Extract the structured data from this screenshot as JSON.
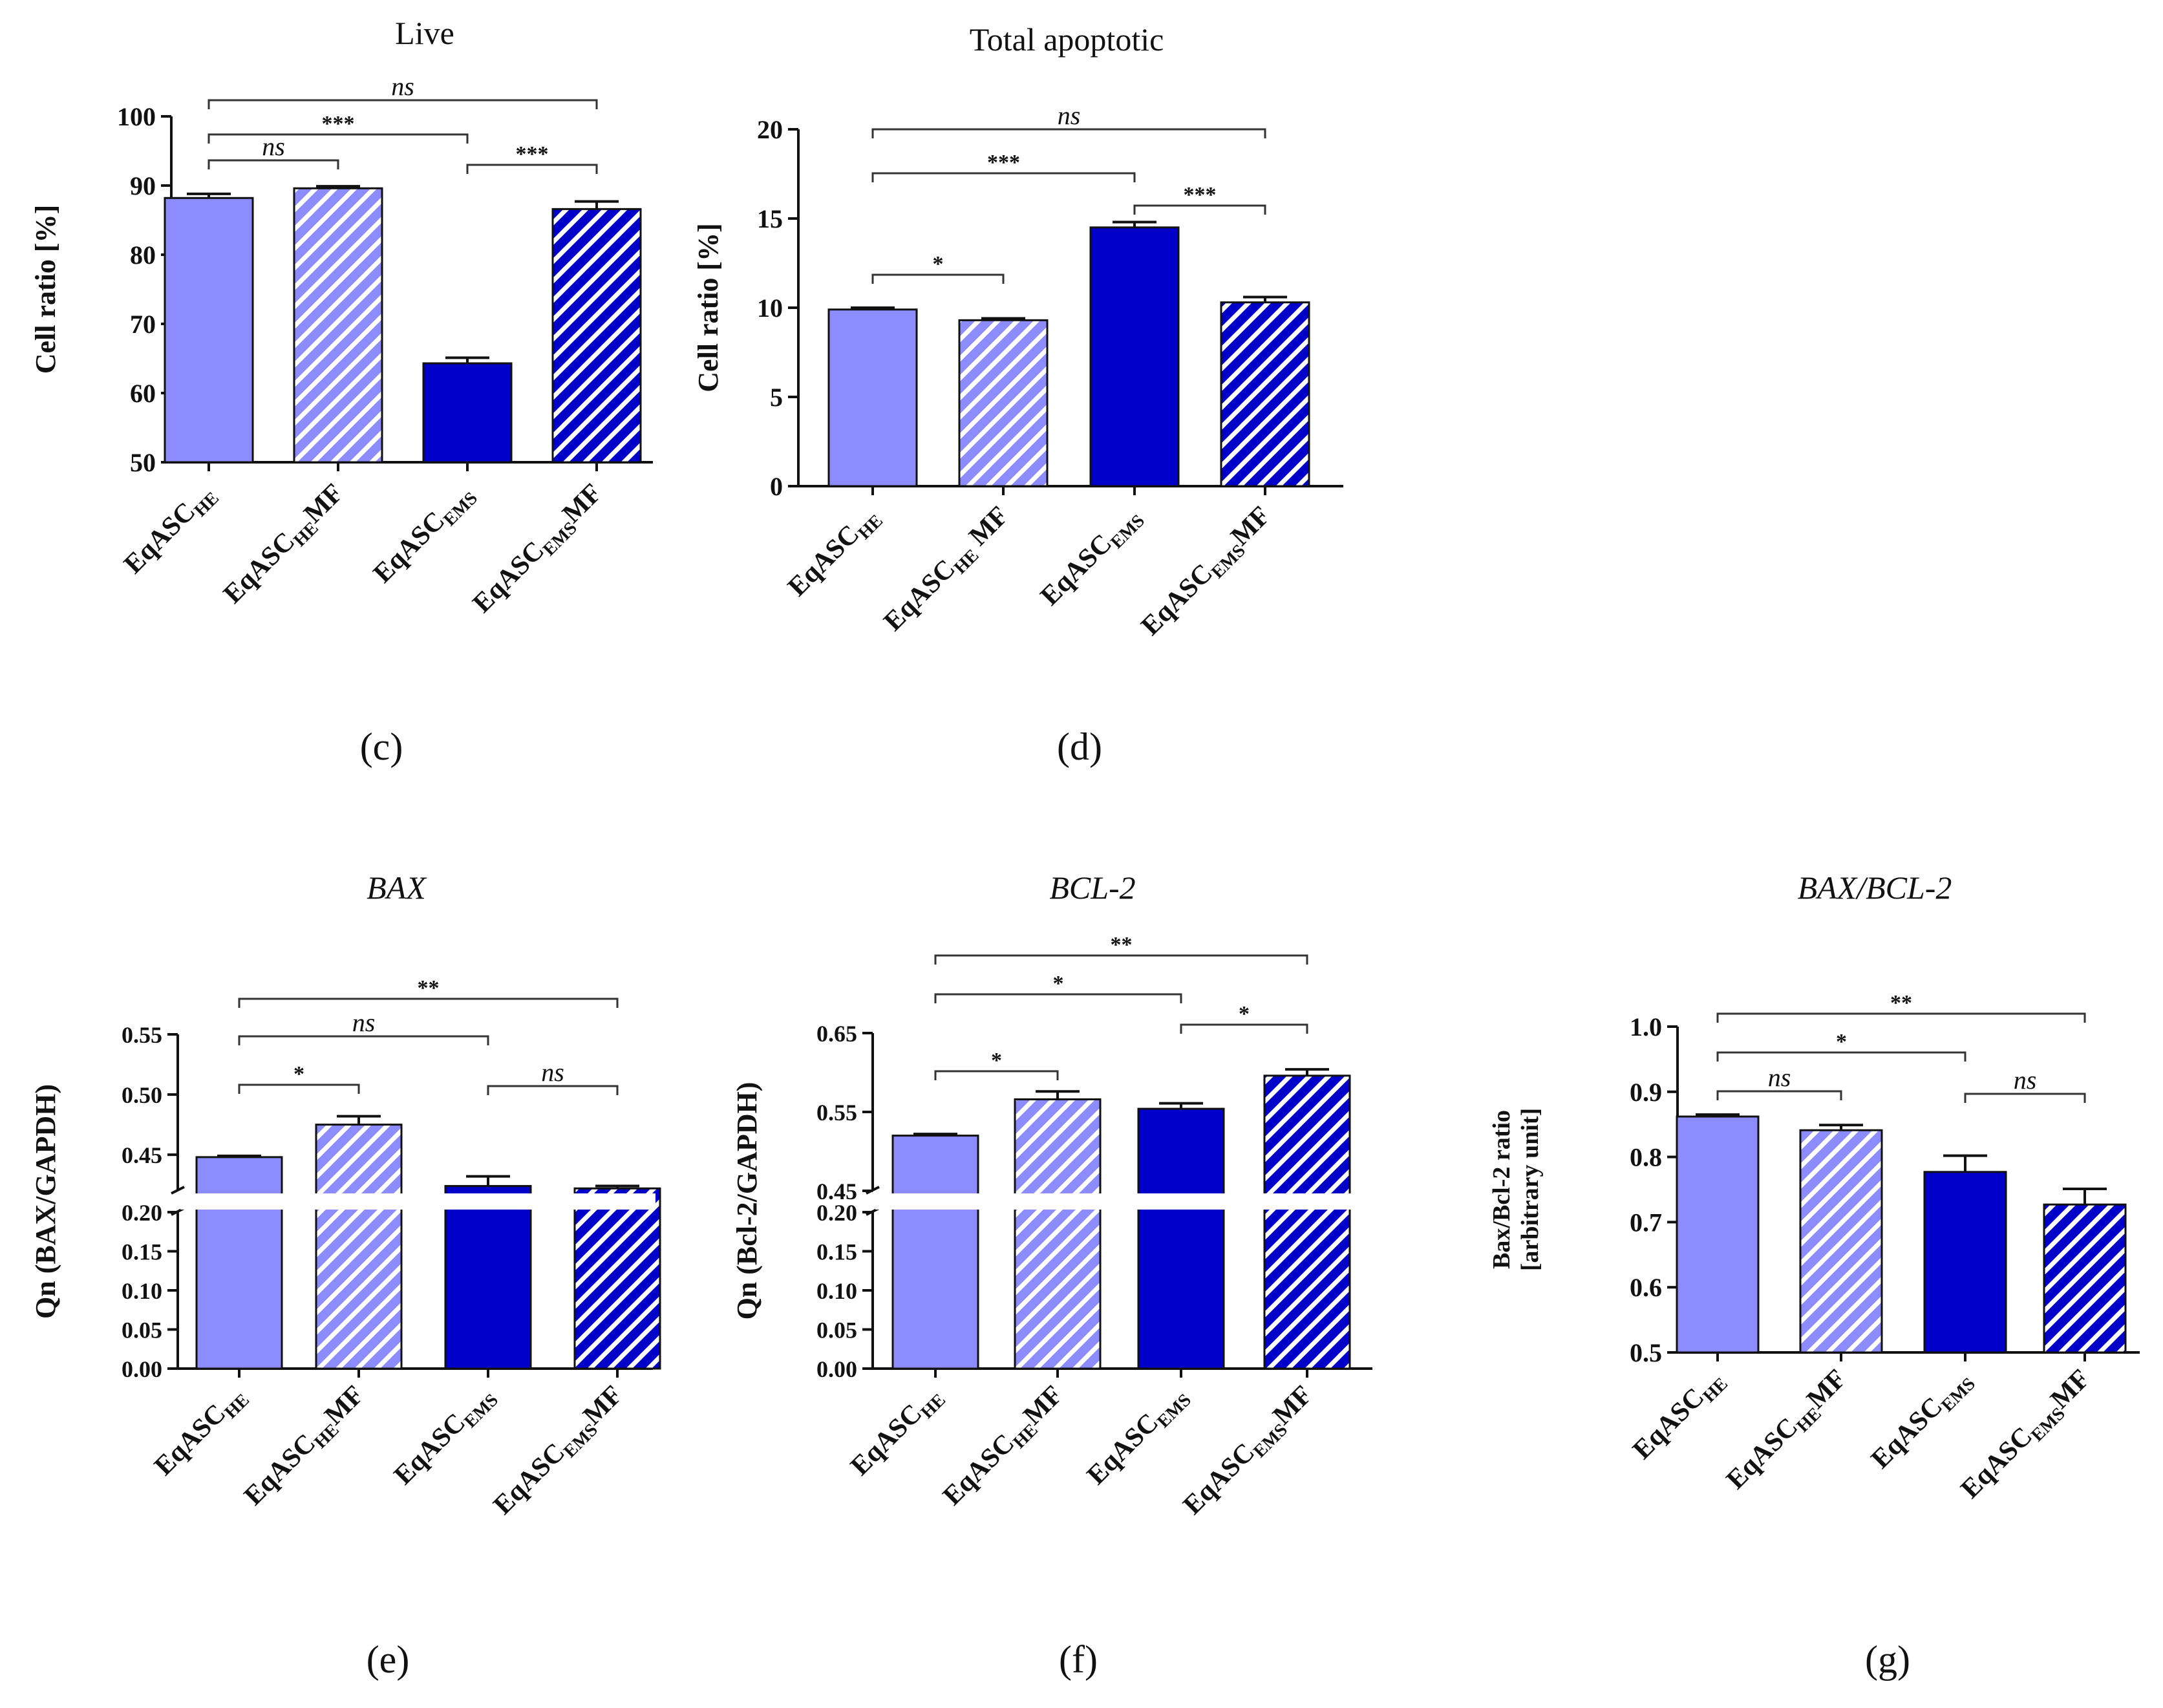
{
  "colors": {
    "he": "#8c8cff",
    "ems": "#0000c8",
    "hatch": "#ffffff",
    "ink": "#111111",
    "break_gap": "#ffffff"
  },
  "chart_data": [
    {
      "id": "c",
      "type": "bar",
      "panel_label": "(c)",
      "title": "Live",
      "title_italic": false,
      "ylabel": "Cell ratio [%]",
      "ylim": [
        50,
        100
      ],
      "yticks": [
        "50",
        "60",
        "70",
        "80",
        "90",
        "100"
      ],
      "categories": [
        {
          "base": "EqASC",
          "sub": "HE",
          "suffix": ""
        },
        {
          "base": "EqASC",
          "sub": "HE",
          "suffix": "MF"
        },
        {
          "base": "EqASC",
          "sub": "EMS",
          "suffix": ""
        },
        {
          "base": "EqASC",
          "sub": "EMS",
          "suffix": "MF"
        }
      ],
      "values": [
        88.2,
        89.6,
        64.3,
        86.6
      ],
      "errors": [
        0.6,
        0.3,
        0.8,
        1.1
      ],
      "comparisons": [
        {
          "from": 0,
          "to": 3,
          "label": "ns"
        },
        {
          "from": 0,
          "to": 2,
          "label": "***"
        },
        {
          "from": 0,
          "to": 1,
          "label": "ns"
        },
        {
          "from": 2,
          "to": 3,
          "label": "***"
        }
      ]
    },
    {
      "id": "d",
      "type": "bar",
      "panel_label": "(d)",
      "title": "Total apoptotic",
      "title_italic": false,
      "ylabel": "Cell ratio [%]",
      "ylim": [
        0,
        20
      ],
      "yticks": [
        "0",
        "5",
        "10",
        "15",
        "20"
      ],
      "categories": [
        {
          "base": "EqASC",
          "sub": "HE",
          "suffix": ""
        },
        {
          "base": "EqASC",
          "sub": "HE",
          "suffix": " MF"
        },
        {
          "base": "EqASC",
          "sub": "EMS",
          "suffix": ""
        },
        {
          "base": "EqASC",
          "sub": "EMS",
          "suffix": "MF"
        }
      ],
      "values": [
        9.9,
        9.3,
        14.5,
        10.3
      ],
      "errors": [
        0.1,
        0.1,
        0.3,
        0.3
      ],
      "comparisons": [
        {
          "from": 0,
          "to": 3,
          "label": "ns"
        },
        {
          "from": 0,
          "to": 2,
          "label": "***"
        },
        {
          "from": 2,
          "to": 3,
          "label": "***"
        },
        {
          "from": 0,
          "to": 1,
          "label": "*"
        }
      ]
    },
    {
      "id": "e",
      "type": "bar",
      "panel_label": "(e)",
      "title": "BAX",
      "title_italic": true,
      "ylabel": "Qn (BAX/GAPDH)",
      "ylim": [
        0,
        0.55
      ],
      "axis_break": [
        0.2,
        0.42
      ],
      "yticks_lower": [
        "0.00",
        "0.05",
        "0.10",
        "0.15",
        "0.20"
      ],
      "yticks_upper": [
        "0.45",
        "0.50",
        "0.55"
      ],
      "categories": [
        {
          "base": "EqASC",
          "sub": "HE",
          "suffix": ""
        },
        {
          "base": "EqASC",
          "sub": "HE",
          "suffix": "MF"
        },
        {
          "base": "EqASC",
          "sub": "EMS",
          "suffix": ""
        },
        {
          "base": "EqASC",
          "sub": "EMS",
          "suffix": "MF"
        }
      ],
      "values": [
        0.448,
        0.475,
        0.424,
        0.422
      ],
      "errors": [
        0.001,
        0.007,
        0.008,
        0.002
      ],
      "comparisons": [
        {
          "from": 0,
          "to": 3,
          "label": "**"
        },
        {
          "from": 0,
          "to": 2,
          "label": "ns"
        },
        {
          "from": 0,
          "to": 1,
          "label": "*"
        },
        {
          "from": 2,
          "to": 3,
          "label": "ns"
        }
      ]
    },
    {
      "id": "f",
      "type": "bar",
      "panel_label": "(f)",
      "title": "BCL-2",
      "title_italic": true,
      "ylabel": "Qn (Bcl-2/GAPDH)",
      "ylim": [
        0,
        0.65
      ],
      "axis_break": [
        0.2,
        0.45
      ],
      "yticks_lower": [
        "0.00",
        "0.05",
        "0.10",
        "0.15",
        "0.20"
      ],
      "yticks_upper": [
        "0.45",
        "0.55",
        "0.65"
      ],
      "categories": [
        {
          "base": "EqASC",
          "sub": "HE",
          "suffix": ""
        },
        {
          "base": "EqASC",
          "sub": "HE",
          "suffix": "MF"
        },
        {
          "base": "EqASC",
          "sub": "EMS",
          "suffix": ""
        },
        {
          "base": "EqASC",
          "sub": "EMS",
          "suffix": "MF"
        }
      ],
      "values": [
        0.52,
        0.566,
        0.554,
        0.596
      ],
      "errors": [
        0.002,
        0.01,
        0.007,
        0.008
      ],
      "comparisons": [
        {
          "from": 0,
          "to": 3,
          "label": "**"
        },
        {
          "from": 0,
          "to": 2,
          "label": "*"
        },
        {
          "from": 2,
          "to": 3,
          "label": "*"
        },
        {
          "from": 0,
          "to": 1,
          "label": "*"
        }
      ]
    },
    {
      "id": "g",
      "type": "bar",
      "panel_label": "(g)",
      "title": "BAX/BCL-2",
      "title_italic": true,
      "ylabel": "Bax/Bcl-2 ratio",
      "ylabel2": "[arbitrary unit]",
      "ylim": [
        0.5,
        1.0
      ],
      "yticks": [
        "0.5",
        "0.6",
        "0.7",
        "0.8",
        "0.9",
        "1.0"
      ],
      "categories": [
        {
          "base": "EqASC",
          "sub": "HE",
          "suffix": ""
        },
        {
          "base": "EqASC",
          "sub": "HE",
          "suffix": "MF"
        },
        {
          "base": "EqASC",
          "sub": "EMS",
          "suffix": ""
        },
        {
          "base": "EqASC",
          "sub": "EMS",
          "suffix": "MF"
        }
      ],
      "values": [
        0.862,
        0.841,
        0.777,
        0.727
      ],
      "errors": [
        0.003,
        0.008,
        0.025,
        0.024
      ],
      "comparisons": [
        {
          "from": 0,
          "to": 3,
          "label": "**"
        },
        {
          "from": 0,
          "to": 2,
          "label": "*"
        },
        {
          "from": 0,
          "to": 1,
          "label": "ns"
        },
        {
          "from": 2,
          "to": 3,
          "label": "ns"
        }
      ]
    }
  ]
}
